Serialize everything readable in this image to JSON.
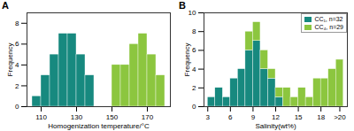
{
  "chart_data": [
    {
      "type": "histogram",
      "title": "A",
      "xlabel": "Homogenization temperature/°C",
      "ylabel": "Frequency",
      "bins": [
        105,
        110,
        115,
        120,
        125,
        130,
        135,
        140,
        145,
        150,
        155,
        160,
        165,
        170,
        175,
        180
      ],
      "series": [
        {
          "color": "#17897f",
          "values": [
            1,
            3,
            5,
            7,
            7,
            5,
            3,
            0,
            0,
            0,
            0,
            0,
            0,
            0,
            0
          ]
        },
        {
          "color": "#8cc63f",
          "values": [
            0,
            0,
            0,
            0,
            0,
            0,
            0,
            0,
            0,
            4,
            4,
            6,
            7,
            5,
            3
          ]
        }
      ],
      "xlim": [
        102,
        183
      ],
      "ylim": [
        0,
        9
      ],
      "xticks": [
        110,
        130,
        150,
        170
      ],
      "yticks": [
        0,
        2,
        4,
        6,
        8
      ],
      "stacked": false
    },
    {
      "type": "histogram",
      "title": "B",
      "xlabel": "Salinity(wt%)",
      "ylabel": "Frequency",
      "bins": [
        3,
        4,
        5,
        6,
        7,
        8,
        9,
        10,
        11,
        12,
        13,
        14,
        15,
        16,
        17,
        18,
        19,
        20,
        21
      ],
      "series": [
        {
          "name": "CC₁, n=32",
          "color": "#17897f",
          "values": [
            1,
            2,
            1,
            3,
            4,
            6,
            7,
            4,
            3,
            1,
            0,
            0,
            0,
            0,
            0,
            0,
            0,
            0
          ]
        },
        {
          "name": "CC₄, n=29",
          "color": "#8cc63f",
          "values": [
            0,
            0,
            0,
            0,
            0,
            2,
            2,
            2,
            1,
            1,
            2,
            1,
            2,
            1,
            3,
            3,
            4,
            5
          ]
        }
      ],
      "xlim": [
        2.5,
        21.5
      ],
      "ylim": [
        0,
        10
      ],
      "xticks": [
        3,
        6,
        9,
        12,
        15,
        18,
        {
          "value": 20.5,
          "label": ">20"
        }
      ],
      "yticks": [
        0,
        2,
        4,
        6,
        8,
        10
      ],
      "stacked": true,
      "legend": "top-right"
    }
  ]
}
